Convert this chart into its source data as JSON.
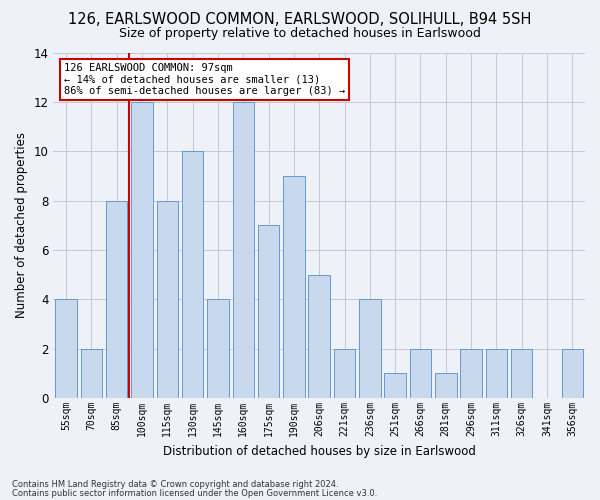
{
  "title": "126, EARLSWOOD COMMON, EARLSWOOD, SOLIHULL, B94 5SH",
  "subtitle": "Size of property relative to detached houses in Earlswood",
  "xlabel": "Distribution of detached houses by size in Earlswood",
  "ylabel": "Number of detached properties",
  "categories": [
    "55sqm",
    "70sqm",
    "85sqm",
    "100sqm",
    "115sqm",
    "130sqm",
    "145sqm",
    "160sqm",
    "175sqm",
    "190sqm",
    "206sqm",
    "221sqm",
    "236sqm",
    "251sqm",
    "266sqm",
    "281sqm",
    "296sqm",
    "311sqm",
    "326sqm",
    "341sqm",
    "356sqm"
  ],
  "values": [
    4,
    2,
    8,
    12,
    8,
    10,
    4,
    12,
    7,
    9,
    5,
    2,
    4,
    1,
    2,
    1,
    2,
    2,
    2,
    0,
    2
  ],
  "bar_color": "#c8d9ee",
  "bar_edge_color": "#6699cc",
  "grid_color": "#c0c8d8",
  "background_color": "#eef2f8",
  "vline_color": "#cc0000",
  "vline_index": 2.5,
  "annotation_text": "126 EARLSWOOD COMMON: 97sqm\n← 14% of detached houses are smaller (13)\n86% of semi-detached houses are larger (83) →",
  "annotation_box_color": "#ffffff",
  "annotation_box_edge": "#cc0000",
  "footnote1": "Contains HM Land Registry data © Crown copyright and database right 2024.",
  "footnote2": "Contains public sector information licensed under the Open Government Licence v3.0.",
  "ylim": [
    0,
    14
  ],
  "yticks": [
    0,
    2,
    4,
    6,
    8,
    10,
    12,
    14
  ]
}
